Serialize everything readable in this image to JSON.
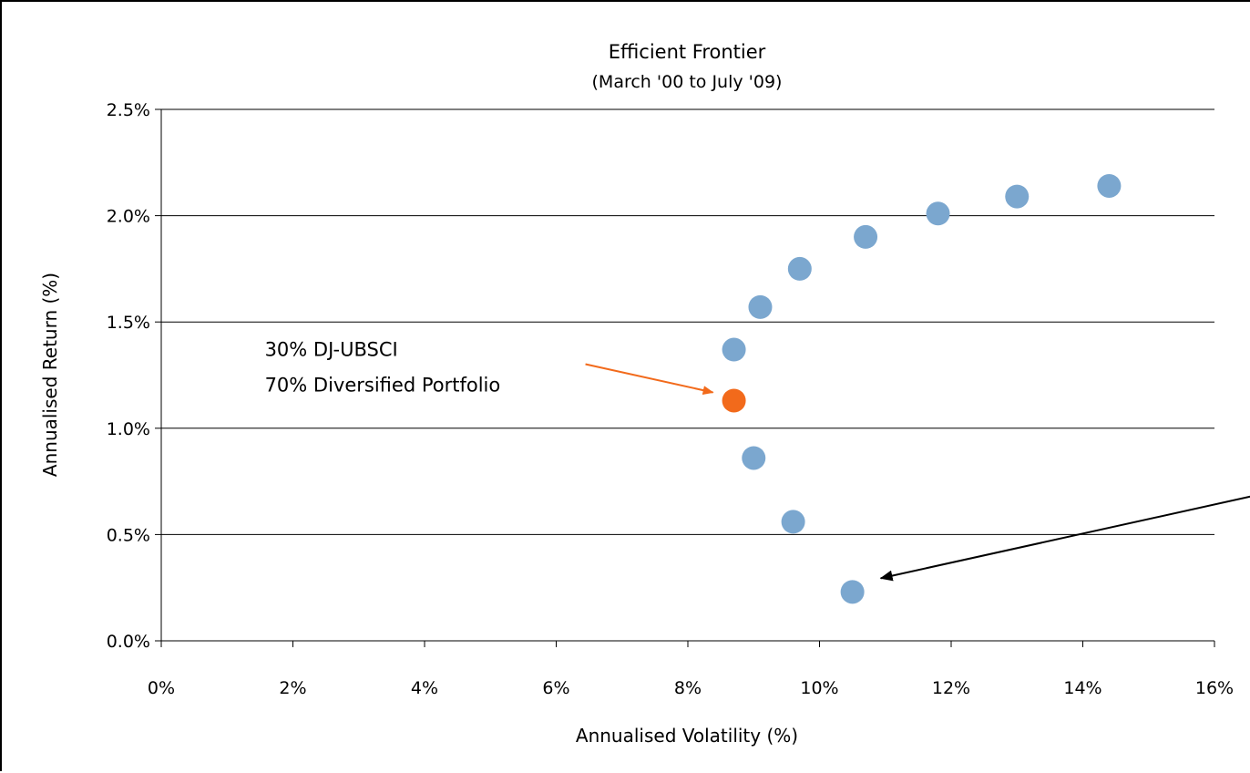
{
  "chart_data": {
    "type": "scatter",
    "title": "Efficient Frontier",
    "subtitle": "(March '00 to July '09)",
    "xlabel": "Annualised Volatility (%)",
    "ylabel": "Annualised Return (%)",
    "xlim": [
      0,
      16
    ],
    "ylim": [
      0,
      2.5
    ],
    "x_ticks": [
      "0%",
      "2%",
      "4%",
      "6%",
      "8%",
      "10%",
      "12%",
      "14%",
      "16%"
    ],
    "y_ticks": [
      "0.0%",
      "0.5%",
      "1.0%",
      "1.5%",
      "2.0%",
      "2.5%"
    ],
    "grid": "horizontal",
    "series": [
      {
        "color": "#7ba7cf",
        "points": [
          {
            "x": 10.5,
            "y": 0.23
          },
          {
            "x": 9.6,
            "y": 0.56
          },
          {
            "x": 9.0,
            "y": 0.86
          },
          {
            "x": 8.7,
            "y": 1.37
          },
          {
            "x": 9.1,
            "y": 1.57
          },
          {
            "x": 9.7,
            "y": 1.75
          },
          {
            "x": 10.7,
            "y": 1.9
          },
          {
            "x": 11.8,
            "y": 2.01
          },
          {
            "x": 13.0,
            "y": 2.09
          },
          {
            "x": 14.4,
            "y": 2.14
          }
        ]
      },
      {
        "color": "#f26a1b",
        "points": [
          {
            "x": 8.7,
            "y": 1.13
          }
        ]
      }
    ],
    "annotations": [
      {
        "lines": [
          "30% DJ-UBSCI",
          "70% Diversified Portfolio"
        ],
        "target": {
          "x": 8.7,
          "y": 1.13
        },
        "color": "#f26a1b"
      },
      {
        "lines": [],
        "target": {
          "x": 10.5,
          "y": 0.23
        },
        "color": "#000000"
      }
    ]
  }
}
